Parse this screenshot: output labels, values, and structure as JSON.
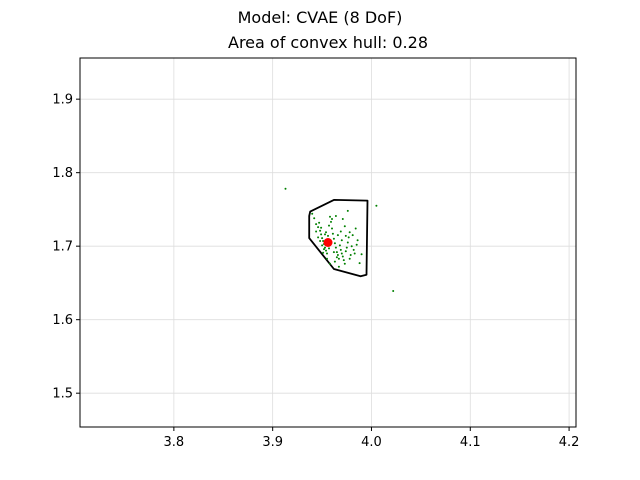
{
  "figure": {
    "suptitle": "Model: CVAE (8 DoF)",
    "axes_title": "Area of convex hull: 0.28"
  },
  "chart_data": {
    "type": "scatter",
    "title": "Area of convex hull: 0.28",
    "xlabel": "",
    "ylabel": "",
    "xlim": [
      3.705,
      4.207
    ],
    "ylim": [
      1.454,
      1.956
    ],
    "xticks": [
      3.8,
      3.9,
      4.0,
      4.1,
      4.2
    ],
    "yticks": [
      1.5,
      1.6,
      1.7,
      1.8,
      1.9
    ],
    "xtick_labels": [
      "3.8",
      "3.9",
      "4.0",
      "4.1",
      "4.2"
    ],
    "ytick_labels": [
      "1.5",
      "1.6",
      "1.7",
      "1.8",
      "1.9"
    ],
    "grid": true,
    "colors": {
      "samples": "#008000",
      "center": "#ff0000",
      "hull": "#000000",
      "grid": "#dddddd"
    },
    "hull_polygon": [
      [
        3.938,
        1.747
      ],
      [
        3.962,
        1.763
      ],
      [
        3.996,
        1.762
      ],
      [
        3.995,
        1.661
      ],
      [
        3.989,
        1.659
      ],
      [
        3.962,
        1.669
      ],
      [
        3.937,
        1.711
      ],
      [
        3.937,
        1.741
      ]
    ],
    "center_point": [
      3.956,
      1.705
    ],
    "sample_points": [
      [
        3.913,
        1.778
      ],
      [
        4.005,
        1.755
      ],
      [
        4.022,
        1.639
      ],
      [
        3.94,
        1.744
      ],
      [
        3.942,
        1.738
      ],
      [
        3.944,
        1.73
      ],
      [
        3.946,
        1.726
      ],
      [
        3.948,
        1.721
      ],
      [
        3.949,
        1.716
      ],
      [
        3.95,
        1.711
      ],
      [
        3.951,
        1.707
      ],
      [
        3.952,
        1.703
      ],
      [
        3.953,
        1.698
      ],
      [
        3.954,
        1.694
      ],
      [
        3.955,
        1.69
      ],
      [
        3.946,
        1.712
      ],
      [
        3.948,
        1.707
      ],
      [
        3.95,
        1.701
      ],
      [
        3.952,
        1.696
      ],
      [
        3.954,
        1.719
      ],
      [
        3.956,
        1.714
      ],
      [
        3.957,
        1.728
      ],
      [
        3.959,
        1.733
      ],
      [
        3.96,
        1.724
      ],
      [
        3.961,
        1.717
      ],
      [
        3.962,
        1.71
      ],
      [
        3.963,
        1.704
      ],
      [
        3.964,
        1.698
      ],
      [
        3.965,
        1.692
      ],
      [
        3.966,
        1.688
      ],
      [
        3.967,
        1.683
      ],
      [
        3.968,
        1.701
      ],
      [
        3.969,
        1.695
      ],
      [
        3.97,
        1.69
      ],
      [
        3.971,
        1.686
      ],
      [
        3.972,
        1.681
      ],
      [
        3.973,
        1.676
      ],
      [
        3.974,
        1.693
      ],
      [
        3.975,
        1.698
      ],
      [
        3.976,
        1.705
      ],
      [
        3.977,
        1.712
      ],
      [
        3.978,
        1.719
      ],
      [
        3.979,
        1.688
      ],
      [
        3.98,
        1.7
      ],
      [
        3.982,
        1.695
      ],
      [
        3.984,
        1.724
      ],
      [
        3.986,
        1.708
      ],
      [
        3.988,
        1.677
      ],
      [
        3.99,
        1.689
      ],
      [
        3.96,
        1.737
      ],
      [
        3.964,
        1.741
      ],
      [
        3.971,
        1.737
      ],
      [
        3.976,
        1.748
      ],
      [
        3.958,
        1.74
      ],
      [
        3.947,
        1.732
      ],
      [
        3.955,
        1.683
      ],
      [
        3.958,
        1.676
      ],
      [
        3.963,
        1.679
      ],
      [
        3.967,
        1.672
      ],
      [
        3.962,
        1.692
      ],
      [
        3.966,
        1.715
      ],
      [
        3.97,
        1.708
      ],
      [
        3.974,
        1.714
      ],
      [
        3.981,
        1.715
      ],
      [
        3.985,
        1.702
      ],
      [
        3.944,
        1.72
      ],
      [
        3.951,
        1.691
      ],
      [
        3.957,
        1.697
      ],
      [
        3.969,
        1.72
      ],
      [
        3.973,
        1.727
      ],
      [
        3.965,
        1.685
      ],
      [
        3.978,
        1.683
      ],
      [
        3.983,
        1.69
      ],
      [
        3.953,
        1.716
      ],
      [
        3.949,
        1.725
      ]
    ]
  }
}
